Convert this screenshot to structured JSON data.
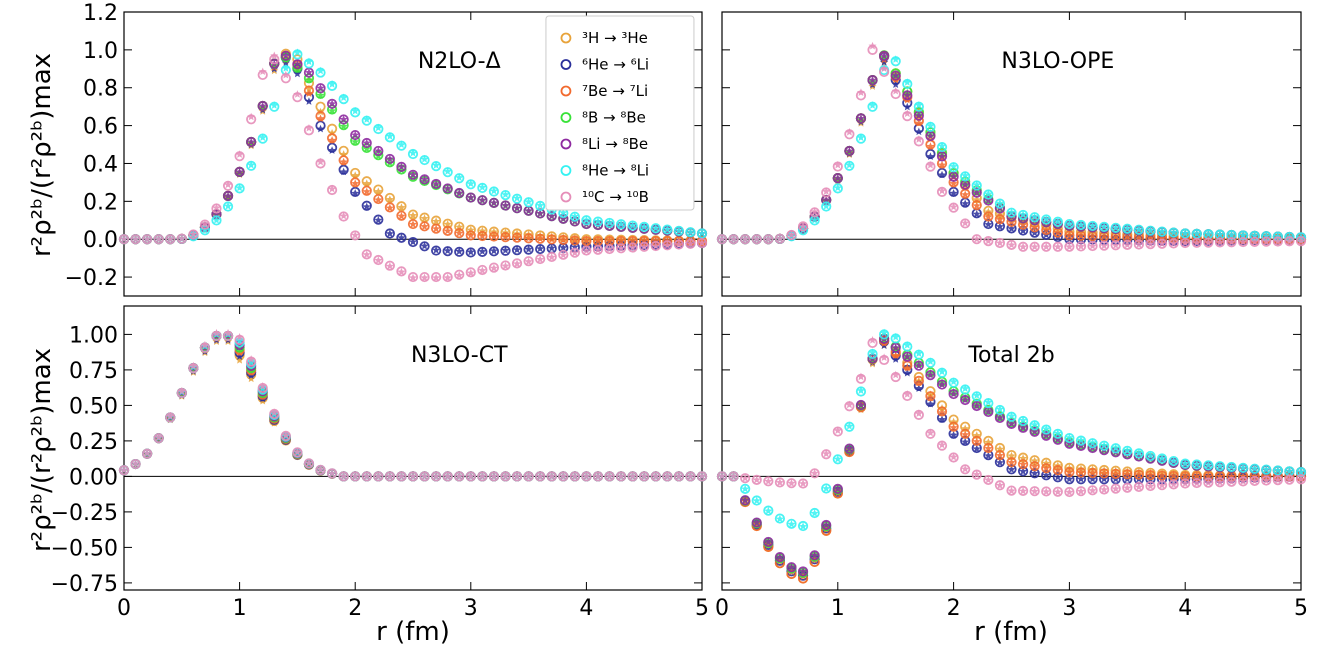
{
  "chart_data": {
    "type": "scatter",
    "xlabel": "r (fm)",
    "ylabel": "r²ρ²ᵇ/(r²ρ²ᵇ)max",
    "xlim": [
      0,
      5
    ],
    "x_ticks": [
      "0",
      "1",
      "2",
      "3",
      "4",
      "5"
    ],
    "series": [
      {
        "name": "³H → ³He",
        "color": "#e8a33a"
      },
      {
        "name": "⁶He → ⁶Li",
        "color": "#2a2f9a"
      },
      {
        "name": "⁷Be → ⁷Li",
        "color": "#f26a2e"
      },
      {
        "name": "⁸B → ⁸Be",
        "color": "#38e238"
      },
      {
        "name": "⁸Li → ⁸Be",
        "color": "#8e2aa0"
      },
      {
        "name": "⁸He → ⁸Li",
        "color": "#35f2f2"
      },
      {
        "name": "¹⁰C → ¹⁰B",
        "color": "#e58db8"
      }
    ],
    "panels": [
      {
        "title": "N2LO-Δ",
        "ylim": [
          -0.3,
          1.2
        ],
        "y_ticks": [
          -0.2,
          0.0,
          0.2,
          0.4,
          0.6,
          0.8,
          1.0,
          1.2
        ],
        "y_tick_labels": [
          "−0.2",
          "0.0",
          "0.2",
          "0.4",
          "0.6",
          "0.8",
          "1.0",
          "1.2"
        ],
        "show_legend": true,
        "legend_position": "top-right",
        "curves": [
          {
            "series": 0,
            "peak": 1.33,
            "ampUp": 1.0,
            "x_at_zero": 0.0,
            "tail": [
              [
                1.33,
                1.0
              ],
              [
                1.5,
                0.95
              ],
              [
                1.7,
                0.7
              ],
              [
                2.0,
                0.35
              ],
              [
                2.5,
                0.13
              ],
              [
                3.0,
                0.05
              ],
              [
                4.0,
                0.0
              ],
              [
                5.0,
                -0.01
              ]
            ]
          },
          {
            "series": 1,
            "tail": [
              [
                1.33,
                1.0
              ],
              [
                1.5,
                0.9
              ],
              [
                1.7,
                0.6
              ],
              [
                2.0,
                0.25
              ],
              [
                2.3,
                0.03
              ],
              [
                2.7,
                -0.06
              ],
              [
                3.0,
                -0.07
              ],
              [
                4.0,
                -0.04
              ],
              [
                5.0,
                -0.02
              ]
            ]
          },
          {
            "series": 2,
            "tail": [
              [
                1.33,
                1.0
              ],
              [
                1.5,
                0.92
              ],
              [
                1.7,
                0.65
              ],
              [
                2.0,
                0.3
              ],
              [
                2.5,
                0.08
              ],
              [
                3.0,
                0.02
              ],
              [
                4.0,
                -0.01
              ],
              [
                5.0,
                -0.01
              ]
            ]
          },
          {
            "series": 3,
            "tail": [
              [
                1.33,
                1.0
              ],
              [
                1.6,
                0.85
              ],
              [
                2.0,
                0.52
              ],
              [
                2.5,
                0.33
              ],
              [
                3.0,
                0.22
              ],
              [
                4.0,
                0.08
              ],
              [
                5.0,
                0.03
              ]
            ]
          },
          {
            "series": 4,
            "tail": [
              [
                1.33,
                1.0
              ],
              [
                1.6,
                0.88
              ],
              [
                2.0,
                0.55
              ],
              [
                2.5,
                0.34
              ],
              [
                3.0,
                0.22
              ],
              [
                4.0,
                0.08
              ],
              [
                5.0,
                0.03
              ]
            ]
          },
          {
            "series": 5,
            "tail": [
              [
                1.45,
                1.0
              ],
              [
                1.7,
                0.88
              ],
              [
                2.0,
                0.67
              ],
              [
                2.5,
                0.45
              ],
              [
                3.0,
                0.29
              ],
              [
                4.0,
                0.1
              ],
              [
                5.0,
                0.03
              ]
            ]
          },
          {
            "series": 6,
            "tail": [
              [
                1.25,
                1.0
              ],
              [
                1.5,
                0.75
              ],
              [
                1.7,
                0.4
              ],
              [
                1.9,
                0.12
              ],
              [
                2.1,
                -0.08
              ],
              [
                2.5,
                -0.2
              ],
              [
                2.8,
                -0.2
              ],
              [
                3.2,
                -0.15
              ],
              [
                4.0,
                -0.06
              ],
              [
                5.0,
                -0.02
              ]
            ]
          }
        ]
      },
      {
        "title": "N3LO-OPE",
        "ylim": [
          -0.3,
          1.2
        ],
        "y_ticks": [],
        "y_tick_labels": [],
        "show_legend": false,
        "curves": [
          {
            "series": 0,
            "tail": [
              [
                1.37,
                1.0
              ],
              [
                1.6,
                0.78
              ],
              [
                1.8,
                0.55
              ],
              [
                2.0,
                0.35
              ],
              [
                2.3,
                0.15
              ],
              [
                3.0,
                0.04
              ],
              [
                4.0,
                0.01
              ],
              [
                5.0,
                0.0
              ]
            ]
          },
          {
            "series": 1,
            "tail": [
              [
                1.37,
                1.0
              ],
              [
                1.6,
                0.72
              ],
              [
                1.8,
                0.45
              ],
              [
                2.0,
                0.25
              ],
              [
                2.3,
                0.08
              ],
              [
                3.0,
                0.0
              ],
              [
                4.0,
                -0.01
              ],
              [
                5.0,
                0.0
              ]
            ]
          },
          {
            "series": 2,
            "tail": [
              [
                1.37,
                1.0
              ],
              [
                1.6,
                0.75
              ],
              [
                1.8,
                0.5
              ],
              [
                2.0,
                0.3
              ],
              [
                2.3,
                0.12
              ],
              [
                3.0,
                0.02
              ],
              [
                4.0,
                0.0
              ],
              [
                5.0,
                0.0
              ]
            ]
          },
          {
            "series": 3,
            "tail": [
              [
                1.37,
                1.0
              ],
              [
                1.6,
                0.78
              ],
              [
                2.0,
                0.35
              ],
              [
                2.5,
                0.12
              ],
              [
                3.0,
                0.07
              ],
              [
                4.0,
                0.03
              ],
              [
                5.0,
                0.01
              ]
            ]
          },
          {
            "series": 4,
            "tail": [
              [
                1.37,
                1.0
              ],
              [
                1.6,
                0.76
              ],
              [
                2.0,
                0.33
              ],
              [
                2.5,
                0.12
              ],
              [
                3.0,
                0.07
              ],
              [
                4.0,
                0.03
              ],
              [
                5.0,
                0.01
              ]
            ]
          },
          {
            "series": 5,
            "tail": [
              [
                1.45,
                1.0
              ],
              [
                1.7,
                0.7
              ],
              [
                2.0,
                0.38
              ],
              [
                2.5,
                0.14
              ],
              [
                3.0,
                0.08
              ],
              [
                4.0,
                0.03
              ],
              [
                5.0,
                0.01
              ]
            ]
          },
          {
            "series": 6,
            "tail": [
              [
                1.3,
                1.0
              ],
              [
                1.6,
                0.65
              ],
              [
                1.9,
                0.25
              ],
              [
                2.2,
                0.0
              ],
              [
                2.6,
                -0.04
              ],
              [
                3.0,
                -0.04
              ],
              [
                4.0,
                -0.02
              ],
              [
                5.0,
                -0.01
              ]
            ]
          }
        ]
      },
      {
        "title": "N3LO-CT",
        "ylim": [
          -0.8,
          1.2
        ],
        "y_ticks": [
          -0.75,
          -0.5,
          -0.25,
          0.0,
          0.25,
          0.5,
          0.75,
          1.0
        ],
        "y_tick_labels": [
          "−0.75",
          "−0.50",
          "−0.25",
          "0.00",
          "0.25",
          "0.50",
          "0.75",
          "1.00"
        ],
        "show_legend": false,
        "curves": []
      },
      {
        "title": "Total 2b",
        "ylim": [
          -0.8,
          1.2
        ],
        "y_ticks": [],
        "y_tick_labels": [],
        "show_legend": false,
        "curves": [
          {
            "series": 0,
            "tail": [
              [
                1.35,
                1.0
              ],
              [
                1.6,
                0.8
              ],
              [
                2.0,
                0.4
              ],
              [
                2.5,
                0.15
              ],
              [
                3.0,
                0.06
              ],
              [
                4.0,
                0.01
              ],
              [
                5.0,
                0.0
              ]
            ]
          },
          {
            "series": 1,
            "tail": [
              [
                1.35,
                1.0
              ],
              [
                1.6,
                0.75
              ],
              [
                2.0,
                0.3
              ],
              [
                2.5,
                0.05
              ],
              [
                3.0,
                -0.02
              ],
              [
                4.0,
                -0.02
              ],
              [
                5.0,
                0.0
              ]
            ]
          },
          {
            "series": 2,
            "tail": [
              [
                1.35,
                1.0
              ],
              [
                1.6,
                0.78
              ],
              [
                2.0,
                0.35
              ],
              [
                2.5,
                0.1
              ],
              [
                3.0,
                0.03
              ],
              [
                4.0,
                0.0
              ],
              [
                5.0,
                0.0
              ]
            ]
          },
          {
            "series": 3,
            "tail": [
              [
                1.35,
                1.0
              ],
              [
                1.7,
                0.8
              ],
              [
                2.0,
                0.6
              ],
              [
                2.5,
                0.38
              ],
              [
                3.0,
                0.24
              ],
              [
                4.0,
                0.08
              ],
              [
                5.0,
                0.03
              ]
            ]
          },
          {
            "series": 4,
            "tail": [
              [
                1.35,
                1.0
              ],
              [
                1.7,
                0.78
              ],
              [
                2.0,
                0.58
              ],
              [
                2.5,
                0.37
              ],
              [
                3.0,
                0.23
              ],
              [
                4.0,
                0.08
              ],
              [
                5.0,
                0.03
              ]
            ]
          },
          {
            "series": 5,
            "tail": [
              [
                1.45,
                1.0
              ],
              [
                1.8,
                0.8
              ],
              [
                2.0,
                0.66
              ],
              [
                2.5,
                0.42
              ],
              [
                3.0,
                0.27
              ],
              [
                4.0,
                0.09
              ],
              [
                5.0,
                0.03
              ]
            ]
          },
          {
            "series": 6,
            "tail": [
              [
                1.25,
                1.0
              ],
              [
                1.5,
                0.7
              ],
              [
                1.8,
                0.3
              ],
              [
                2.1,
                0.05
              ],
              [
                2.5,
                -0.1
              ],
              [
                3.0,
                -0.11
              ],
              [
                4.0,
                -0.05
              ],
              [
                5.0,
                -0.02
              ]
            ]
          }
        ]
      }
    ]
  }
}
